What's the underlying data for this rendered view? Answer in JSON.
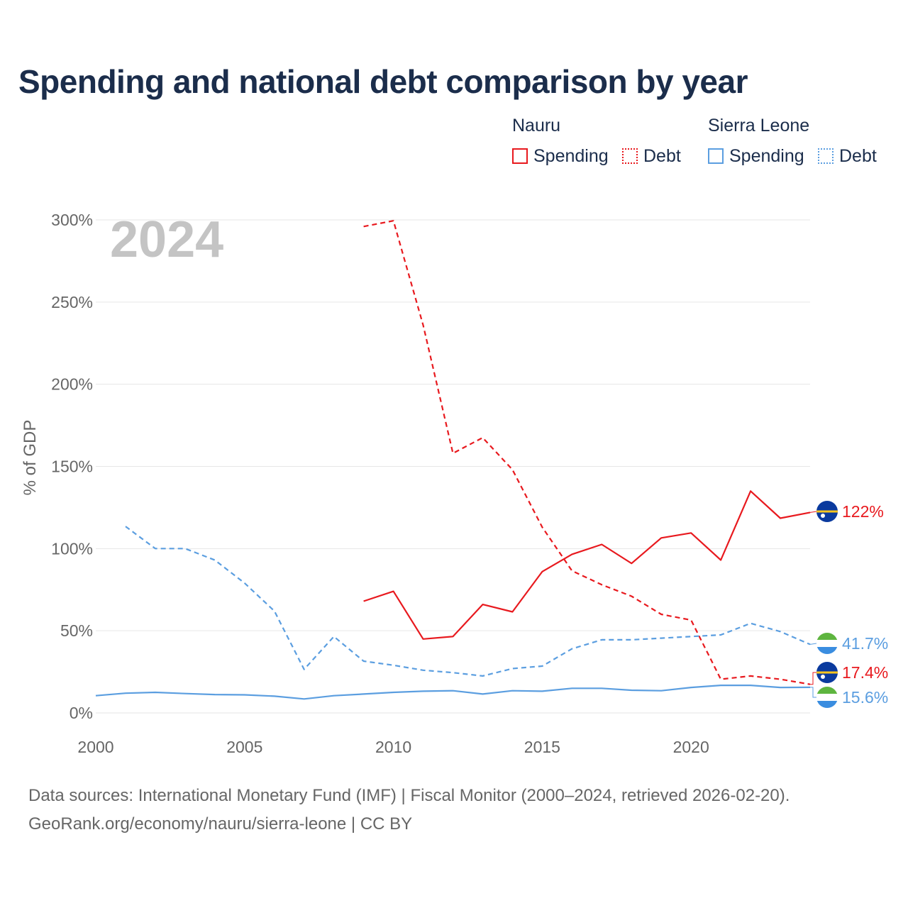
{
  "title": "Spending and national debt comparison by year",
  "legend": {
    "groups": [
      {
        "name": "Nauru",
        "color": "#e8191e",
        "items": [
          {
            "label": "Spending",
            "style": "solid"
          },
          {
            "label": "Debt",
            "style": "dotted"
          }
        ]
      },
      {
        "name": "Sierra Leone",
        "color": "#5b9ee0",
        "items": [
          {
            "label": "Spending",
            "style": "solid"
          },
          {
            "label": "Debt",
            "style": "dotted"
          }
        ]
      }
    ]
  },
  "source": {
    "line1": "Data sources: International Monetary Fund (IMF) | Fiscal Monitor (2000–2024, retrieved 2026-02-20).",
    "line2": "GeoRank.org/economy/nauru/sierra-leone | CC BY"
  },
  "icons": {
    "nauru_flag": "nauru-flag-icon",
    "sierra_leone_flag": "sierra-leone-flag-icon"
  },
  "chart_data": {
    "type": "line",
    "year_watermark": "2024",
    "ylabel": "% of GDP",
    "xlabel": "",
    "xlim": [
      2000,
      2024
    ],
    "ylim": [
      0,
      300
    ],
    "x_ticks": [
      2000,
      2005,
      2010,
      2015,
      2020
    ],
    "x_tick_labels": [
      "2000",
      "2005",
      "2010",
      "2015",
      "2020"
    ],
    "y_ticks": [
      0,
      50,
      100,
      150,
      200,
      250,
      300
    ],
    "y_tick_labels": [
      "0%",
      "50%",
      "100%",
      "150%",
      "200%",
      "250%",
      "300%"
    ],
    "grid": true,
    "series": [
      {
        "name": "Nauru Spending",
        "country": "Nauru",
        "kind": "spending",
        "color": "#e8191e",
        "dash": "solid",
        "x": [
          2009,
          2010,
          2011,
          2012,
          2013,
          2014,
          2015,
          2016,
          2017,
          2018,
          2019,
          2020,
          2021,
          2022,
          2023,
          2024
        ],
        "values": [
          68,
          74,
          45,
          46.5,
          66,
          61.5,
          86,
          96.5,
          102.5,
          91,
          106.5,
          109.5,
          93,
          135,
          118.5,
          122
        ],
        "end_label": "122%"
      },
      {
        "name": "Nauru Debt",
        "country": "Nauru",
        "kind": "debt",
        "color": "#e8191e",
        "dash": "dashed",
        "x": [
          2009,
          2010,
          2011,
          2012,
          2013,
          2014,
          2015,
          2016,
          2017,
          2018,
          2019,
          2020,
          2021,
          2022,
          2023,
          2024
        ],
        "values": [
          296,
          299.5,
          236,
          158,
          167.5,
          148,
          113,
          86.5,
          78,
          71,
          60,
          56.5,
          20.5,
          22.5,
          20.5,
          17.4
        ],
        "end_label": "17.4%"
      },
      {
        "name": "Sierra Leone Spending",
        "country": "Sierra Leone",
        "kind": "spending",
        "color": "#5b9ee0",
        "dash": "solid",
        "x": [
          2000,
          2001,
          2002,
          2003,
          2004,
          2005,
          2006,
          2007,
          2008,
          2009,
          2010,
          2011,
          2012,
          2013,
          2014,
          2015,
          2016,
          2017,
          2018,
          2019,
          2020,
          2021,
          2022,
          2023,
          2024
        ],
        "values": [
          10.5,
          12,
          12.5,
          11.8,
          11.2,
          11,
          10.2,
          8.5,
          10.5,
          11.5,
          12.5,
          13.2,
          13.5,
          11.5,
          13.5,
          13.2,
          15,
          15,
          13.8,
          13.5,
          15.5,
          16.8,
          16.8,
          15.5,
          15.6
        ],
        "end_label": "15.6%"
      },
      {
        "name": "Sierra Leone Debt",
        "country": "Sierra Leone",
        "kind": "debt",
        "color": "#5b9ee0",
        "dash": "dashed",
        "x": [
          2001,
          2002,
          2003,
          2004,
          2005,
          2006,
          2007,
          2008,
          2009,
          2010,
          2011,
          2012,
          2013,
          2014,
          2015,
          2016,
          2017,
          2018,
          2019,
          2020,
          2021,
          2022,
          2023,
          2024
        ],
        "values": [
          113.5,
          100,
          100,
          93,
          79,
          62,
          26.5,
          46.5,
          31.5,
          29,
          26,
          24.5,
          22.5,
          27,
          28.5,
          39,
          44.5,
          44.5,
          45.5,
          46.5,
          47.5,
          54.5,
          49.5,
          41.7
        ],
        "end_label": "41.7%"
      }
    ]
  }
}
